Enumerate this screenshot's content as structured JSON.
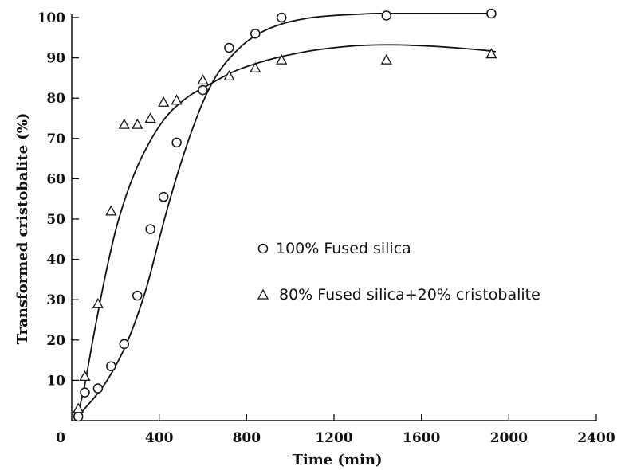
{
  "chart_data": {
    "type": "scatter",
    "xlabel": "Time (min)",
    "ylabel": "Transformed cristobalite (%)",
    "xlim": [
      0,
      2400
    ],
    "ylim": [
      0,
      100
    ],
    "x_ticks": [
      0,
      400,
      800,
      1200,
      1600,
      2000,
      2400
    ],
    "y_ticks": [
      10,
      20,
      30,
      40,
      50,
      60,
      70,
      80,
      90,
      100
    ],
    "grid": false,
    "legend_position": "center-right",
    "series": [
      {
        "name": "100% Fused silica",
        "marker": "circle",
        "color": "#111111",
        "x": [
          30,
          60,
          120,
          180,
          240,
          300,
          360,
          420,
          480,
          600,
          720,
          840,
          960,
          1440,
          1920
        ],
        "y": [
          1,
          7,
          8,
          13.5,
          19,
          31,
          47.5,
          55.5,
          69,
          82,
          92.5,
          96,
          100,
          100.5,
          101
        ],
        "fit_x": [
          30,
          60,
          100,
          150,
          200,
          250,
          300,
          350,
          400,
          450,
          500,
          550,
          600,
          650,
          700,
          750,
          800,
          850,
          900,
          950,
          1000,
          1100,
          1200,
          1300,
          1400,
          1500,
          1600,
          1700,
          1800,
          1900,
          1940
        ],
        "fit_y": [
          1,
          3,
          5.5,
          9,
          13.5,
          19,
          26,
          34.5,
          45,
          55,
          64,
          72,
          79,
          84.5,
          88.5,
          91.5,
          94,
          95.8,
          97.2,
          98.2,
          99,
          100,
          100.5,
          100.8,
          101,
          101,
          101,
          101,
          101,
          101,
          101
        ]
      },
      {
        "name": "80% Fused silica+20% cristobalite",
        "marker": "triangle",
        "color": "#111111",
        "x": [
          30,
          60,
          120,
          180,
          240,
          300,
          360,
          420,
          480,
          600,
          720,
          840,
          960,
          1440,
          1920
        ],
        "y": [
          3,
          11,
          29,
          52,
          73.5,
          73.5,
          75,
          79,
          79.5,
          84.5,
          85.5,
          87.5,
          89.5,
          89.5,
          91
        ],
        "fit_x": [
          30,
          60,
          100,
          150,
          200,
          250,
          300,
          350,
          400,
          450,
          500,
          550,
          600,
          650,
          700,
          750,
          800,
          850,
          900,
          950,
          1000,
          1100,
          1200,
          1300,
          1400,
          1500,
          1600,
          1700,
          1800,
          1900,
          1940
        ],
        "fit_y": [
          2,
          9,
          21,
          35,
          47,
          56,
          63,
          68.5,
          73,
          76.5,
          79,
          81,
          82.5,
          84,
          85.5,
          86.8,
          87.8,
          88.7,
          89.5,
          90.2,
          90.8,
          91.8,
          92.5,
          93,
          93.2,
          93.2,
          93,
          92.7,
          92.3,
          91.8,
          91.5
        ]
      }
    ],
    "tick_label_zero": "0"
  }
}
